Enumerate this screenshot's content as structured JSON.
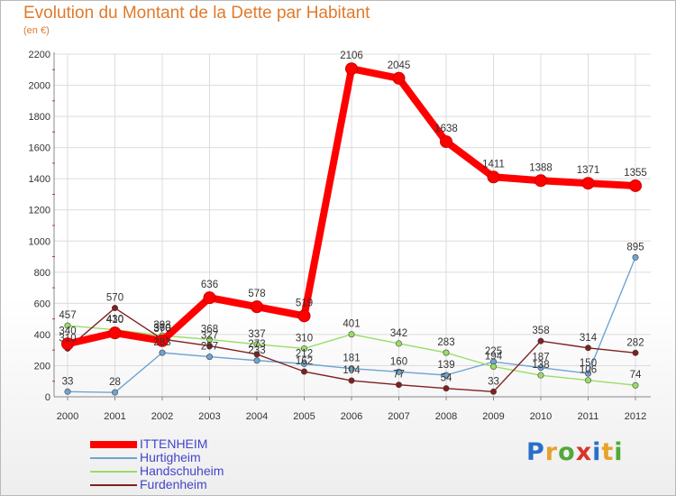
{
  "title": "Evolution du Montant de la Dette par Habitant",
  "subtitle": "(en €)",
  "logo": {
    "text": "Proxiti",
    "colors": [
      "#2a6fc9",
      "#e8a12a",
      "#52a83a",
      "#d9342b",
      "#2a6fc9",
      "#e8a12a",
      "#52a83a"
    ]
  },
  "chart_data": {
    "type": "line",
    "x": [
      "2000",
      "2001",
      "2002",
      "2003",
      "2004",
      "2005",
      "2006",
      "2007",
      "2008",
      "2009",
      "2010",
      "2011",
      "2012"
    ],
    "ylim": [
      0,
      2200
    ],
    "yticks": [
      "0",
      "200",
      "400",
      "600",
      "800",
      "1000",
      "1200",
      "1400",
      "1600",
      "1800",
      "2000",
      "2200"
    ],
    "grid": true,
    "legend_position": "bottom-left",
    "series": [
      {
        "name": "ITTENHEIM",
        "color": "#ff0000",
        "values": [
          340,
          410,
          360,
          636,
          578,
          519,
          2106,
          2045,
          1638,
          1411,
          1388,
          1371,
          1355
        ],
        "labels": [
          "340",
          "410",
          "360",
          "636",
          "578",
          "519",
          "2106",
          "2045",
          "1638",
          "1411",
          "1388",
          "1371",
          "1355"
        ]
      },
      {
        "name": "Hurtigheim",
        "color": "#6fa4d2",
        "values": [
          33,
          28,
          283,
          257,
          233,
          212,
          181,
          160,
          139,
          225,
          187,
          150,
          895
        ],
        "labels": [
          "33",
          "28",
          "283",
          "257",
          "233",
          "212",
          "181",
          "160",
          "139",
          "225",
          "187",
          "150",
          "895"
        ]
      },
      {
        "name": "Handschuheim",
        "color": "#99dd66",
        "values": [
          457,
          430,
          393,
          368,
          337,
          310,
          401,
          342,
          283,
          194,
          138,
          106,
          74
        ],
        "labels": [
          "457",
          "430",
          "393",
          "368",
          "337",
          "310",
          "401",
          "342",
          "283",
          "194",
          "138",
          "106",
          "74"
        ]
      },
      {
        "name": "Furdenheim",
        "color": "#802020",
        "values": [
          310,
          570,
          370,
          327,
          273,
          162,
          104,
          77,
          54,
          33,
          358,
          314,
          282
        ],
        "labels": [
          "310",
          "570",
          "370",
          "327",
          "273",
          "162",
          "104",
          "77",
          "54",
          "33",
          "358",
          "314",
          "282"
        ]
      }
    ]
  }
}
